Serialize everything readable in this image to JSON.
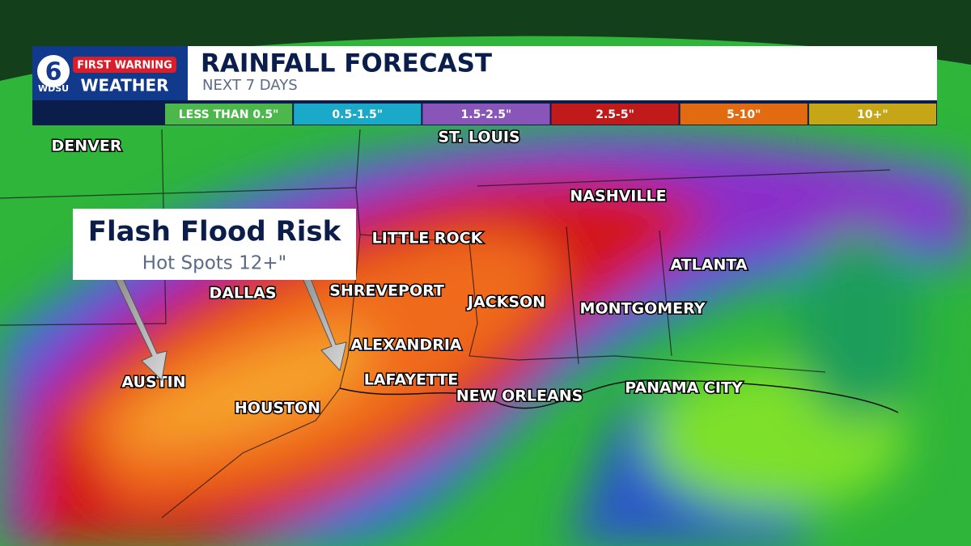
{
  "header": {
    "logo": {
      "number": "6",
      "brand_top": "FIRST WARNING",
      "station": "WDSU",
      "brand_bottom": "WEATHER"
    },
    "title": "RAINFALL FORECAST",
    "subtitle": "NEXT 7 DAYS"
  },
  "legend": [
    {
      "label": "LESS THAN 0.5\"",
      "color": "#4cb84c"
    },
    {
      "label": "0.5-1.5\"",
      "color": "#1aa9c9"
    },
    {
      "label": "1.5-2.5\"",
      "color": "#8a55b8"
    },
    {
      "label": "2.5-5\"",
      "color": "#c01a1a"
    },
    {
      "label": "5-10\"",
      "color": "#e26a10"
    },
    {
      "label": "10+\"",
      "color": "#c6a617"
    }
  ],
  "cities": [
    "DENVER",
    "ST. LOUIS",
    "NASHVILLE",
    "LITTLE ROCK",
    "ATLANTA",
    "DALLAS",
    "SHREVEPORT",
    "JACKSON",
    "MONTGOMERY",
    "ALEXANDRIA",
    "AUSTIN",
    "LAFAYETTE",
    "NEW ORLEANS",
    "PANAMA CITY",
    "HOUSTON"
  ],
  "callout": {
    "title": "Flash Flood Risk",
    "subtitle": "Hot Spots 12+\""
  }
}
